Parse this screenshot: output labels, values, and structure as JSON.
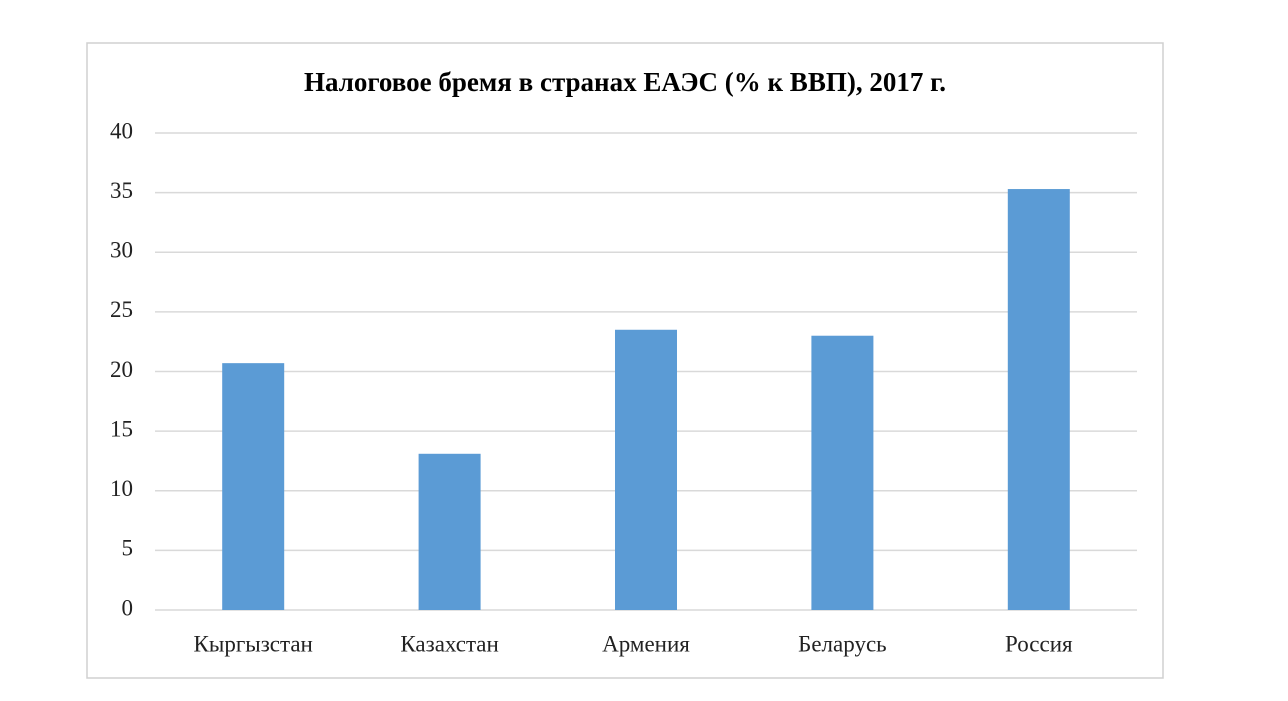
{
  "chart_data": {
    "type": "bar",
    "title": "Налоговое бремя в странах ЕАЭС (% к ВВП), 2017 г.",
    "categories": [
      "Кыргызстан",
      "Казахстан",
      "Армения",
      "Беларусь",
      "Россия"
    ],
    "values": [
      20.7,
      13.1,
      23.5,
      23.0,
      35.3
    ],
    "color": "#5b9bd5",
    "ylim": [
      0,
      40
    ],
    "yticks": [
      0,
      5,
      10,
      15,
      20,
      25,
      30,
      35,
      40
    ],
    "grid": true
  }
}
